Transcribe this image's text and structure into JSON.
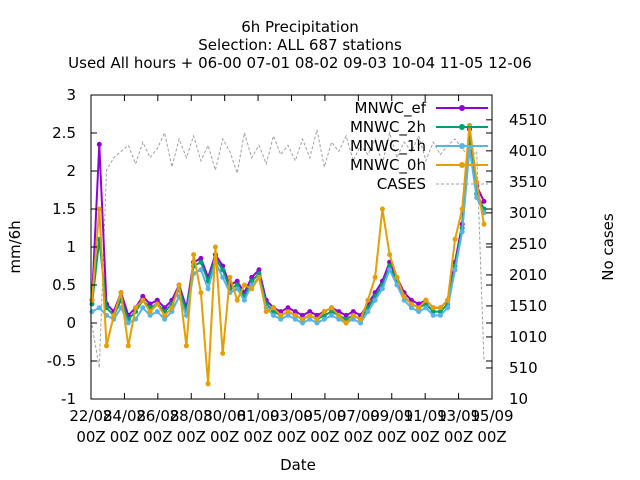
{
  "chart_data": {
    "type": "line",
    "title_lines": [
      "6h Precipitation",
      "Selection: ALL     687 stations",
      "Used  All hours  + 06-00 07-01 08-02 09-03 10-04 11-05 12-06"
    ],
    "xlabel": "Date",
    "ylabel": "mm/6h",
    "y2label": "No cases",
    "ylim": [
      -1,
      3
    ],
    "y2lim": [
      10,
      4910
    ],
    "yticks": [
      "3",
      "2.5",
      "2",
      "1.5",
      "1",
      "0.5",
      "0",
      "-0.5",
      "-1"
    ],
    "y2ticks": [
      "4510",
      "4010",
      "3510",
      "3010",
      "2510",
      "2010",
      "1510",
      "1010",
      "510",
      "10"
    ],
    "xtick_dates": [
      "22/08",
      "24/08",
      "26/08",
      "28/08",
      "30/08",
      "01/09",
      "03/09",
      "05/09",
      "07/09",
      "09/09",
      "11/09",
      "13/09",
      "15/09"
    ],
    "xtick_time": "00Z",
    "grid": false,
    "legend_position": "top-right",
    "colors": {
      "MNWC_ef": "#9400d3",
      "MNWC_2h": "#009e73",
      "MNWC_1h": "#56b4e9",
      "MNWC_0h": "#e69f00",
      "CASES": "#a0a0a0"
    },
    "series": [
      {
        "name": "MNWC_ef",
        "values": [
          0.3,
          2.35,
          0.25,
          0.15,
          0.4,
          0.1,
          0.2,
          0.35,
          0.25,
          0.3,
          0.2,
          0.3,
          0.5,
          0.2,
          0.8,
          0.85,
          0.6,
          0.9,
          0.75,
          0.5,
          0.55,
          0.4,
          0.6,
          0.7,
          0.3,
          0.2,
          0.15,
          0.2,
          0.15,
          0.1,
          0.15,
          0.1,
          0.15,
          0.2,
          0.15,
          0.1,
          0.15,
          0.1,
          0.25,
          0.4,
          0.55,
          0.8,
          0.6,
          0.4,
          0.3,
          0.25,
          0.3,
          0.2,
          0.2,
          0.3,
          0.8,
          1.3,
          2.55,
          1.8,
          1.6
        ]
      },
      {
        "name": "MNWC_2h",
        "values": [
          0.25,
          1.1,
          0.2,
          0.1,
          0.3,
          0.05,
          0.15,
          0.3,
          0.2,
          0.25,
          0.15,
          0.25,
          0.45,
          0.15,
          0.75,
          0.8,
          0.55,
          0.85,
          0.7,
          0.45,
          0.5,
          0.35,
          0.55,
          0.65,
          0.25,
          0.15,
          0.1,
          0.15,
          0.1,
          0.05,
          0.1,
          0.05,
          0.1,
          0.15,
          0.1,
          0.05,
          0.1,
          0.05,
          0.2,
          0.35,
          0.5,
          0.75,
          0.55,
          0.35,
          0.25,
          0.2,
          0.25,
          0.15,
          0.15,
          0.25,
          0.75,
          1.25,
          2.4,
          1.7,
          1.5
        ]
      },
      {
        "name": "MNWC_1h",
        "values": [
          0.15,
          0.2,
          0.1,
          0.05,
          0.2,
          0.0,
          0.05,
          0.2,
          0.1,
          0.15,
          0.05,
          0.15,
          0.35,
          0.1,
          0.65,
          0.7,
          0.45,
          0.8,
          0.6,
          0.4,
          0.45,
          0.3,
          0.5,
          0.6,
          0.2,
          0.1,
          0.05,
          0.1,
          0.05,
          0.0,
          0.05,
          0.0,
          0.05,
          0.1,
          0.05,
          0.0,
          0.05,
          0.0,
          0.15,
          0.3,
          0.45,
          0.7,
          0.5,
          0.3,
          0.2,
          0.15,
          0.2,
          0.1,
          0.1,
          0.2,
          0.7,
          1.2,
          2.3,
          1.65,
          1.45
        ]
      },
      {
        "name": "MNWC_0h",
        "values": [
          0.3,
          1.5,
          -0.3,
          0.1,
          0.4,
          -0.3,
          0.2,
          0.3,
          0.15,
          0.25,
          0.1,
          0.2,
          0.5,
          -0.3,
          0.9,
          0.4,
          -0.8,
          1.0,
          -0.4,
          0.6,
          0.3,
          0.5,
          0.45,
          0.6,
          0.15,
          0.2,
          0.1,
          0.15,
          0.1,
          0.05,
          0.1,
          0.05,
          0.15,
          0.2,
          0.1,
          0.0,
          0.1,
          0.05,
          0.3,
          0.6,
          1.5,
          0.9,
          0.6,
          0.35,
          0.25,
          0.2,
          0.3,
          0.2,
          0.2,
          0.3,
          1.1,
          1.5,
          2.6,
          1.85,
          1.3
        ]
      },
      {
        "name": "CASES",
        "values": [
          1200,
          510,
          3700,
          3900,
          4000,
          4100,
          3800,
          4150,
          3900,
          4050,
          4300,
          3750,
          4200,
          3900,
          4250,
          3850,
          4100,
          3700,
          4200,
          4000,
          3650,
          4300,
          3900,
          4100,
          3800,
          4250,
          3950,
          4100,
          3850,
          4200,
          3900,
          4350,
          3750,
          4150,
          4000,
          4250,
          3850,
          4100,
          3950,
          4200,
          3800,
          4300,
          3900,
          4150,
          4000,
          4250,
          3850,
          4150,
          3950,
          4100,
          4200,
          4050,
          3900,
          4000,
          610
        ]
      }
    ]
  }
}
